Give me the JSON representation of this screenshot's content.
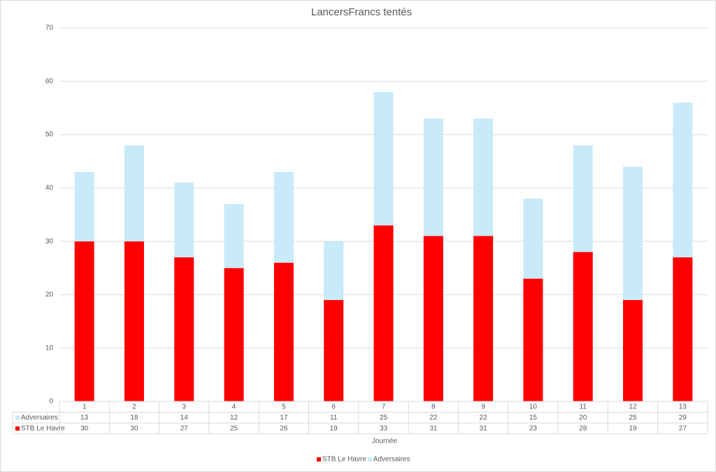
{
  "chart_data": {
    "type": "stacked-bar",
    "title": "LancersFrancs tentés",
    "x_label": "Journée",
    "categories": [
      "1",
      "2",
      "3",
      "4",
      "5",
      "6",
      "7",
      "8",
      "9",
      "10",
      "11",
      "12",
      "13"
    ],
    "series": [
      {
        "name": "STB Le Havre",
        "color": "#ff0000",
        "values": [
          30,
          30,
          27,
          25,
          26,
          19,
          33,
          31,
          31,
          23,
          28,
          19,
          27
        ]
      },
      {
        "name": "Adversaires",
        "color": "#c9eaf8",
        "values": [
          13,
          18,
          14,
          12,
          17,
          11,
          25,
          22,
          22,
          15,
          20,
          25,
          29
        ]
      }
    ],
    "ylim": [
      0,
      70
    ],
    "yticks": [
      0,
      10,
      20,
      30,
      40,
      50,
      60,
      70
    ],
    "grid": true,
    "data_table": true,
    "legend": "bottom"
  }
}
